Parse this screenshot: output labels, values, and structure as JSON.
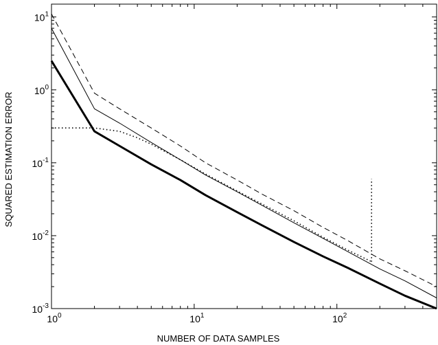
{
  "chart_data": {
    "type": "line",
    "title": "",
    "xlabel": "NUMBER OF DATA SAMPLES",
    "ylabel": "SQUARED ESTIMATION ERROR",
    "xscale": "log",
    "yscale": "log",
    "xlim": [
      1,
      500
    ],
    "ylim": [
      0.001,
      15
    ],
    "grid": false,
    "legend": "none",
    "x_ticks": [
      {
        "base": "10",
        "exp": "0"
      },
      {
        "base": "10",
        "exp": "1"
      },
      {
        "base": "10",
        "exp": "2"
      }
    ],
    "y_ticks": [
      {
        "base": "10",
        "exp": "-3"
      },
      {
        "base": "10",
        "exp": "-2"
      },
      {
        "base": "10",
        "exp": "-1"
      },
      {
        "base": "10",
        "exp": "0"
      },
      {
        "base": "10",
        "exp": "1"
      }
    ],
    "series": [
      {
        "style": "dashed",
        "x": [
          1,
          2,
          3,
          5,
          8,
          12,
          20,
          30,
          50,
          80,
          120,
          200,
          300,
          500
        ],
        "y": [
          11,
          0.9,
          0.55,
          0.3,
          0.17,
          0.1,
          0.058,
          0.037,
          0.022,
          0.013,
          0.0085,
          0.0048,
          0.0033,
          0.002
        ]
      },
      {
        "style": "thin-solid",
        "x": [
          1,
          2,
          3,
          5,
          8,
          12,
          20,
          30,
          50,
          80,
          120,
          200,
          300,
          500
        ],
        "y": [
          7,
          0.55,
          0.35,
          0.19,
          0.11,
          0.068,
          0.04,
          0.026,
          0.015,
          0.0092,
          0.006,
          0.0035,
          0.0024,
          0.0014
        ]
      },
      {
        "style": "dotted",
        "x": [
          1,
          2,
          3,
          4,
          5,
          8,
          12,
          20,
          30,
          50,
          80,
          120,
          175
        ],
        "y": [
          0.3,
          0.3,
          0.27,
          0.22,
          0.18,
          0.11,
          0.07,
          0.041,
          0.027,
          0.016,
          0.0095,
          0.0063,
          0.0044
        ]
      },
      {
        "style": "thick-solid",
        "x": [
          1,
          2,
          3,
          5,
          8,
          12,
          20,
          30,
          50,
          80,
          120,
          200,
          300,
          500
        ],
        "y": [
          2.5,
          0.27,
          0.17,
          0.095,
          0.058,
          0.036,
          0.021,
          0.0138,
          0.0082,
          0.0052,
          0.0036,
          0.0022,
          0.0015,
          0.001
        ]
      }
    ],
    "annotations": [
      {
        "type": "vertical-dotted-line",
        "x": 175,
        "y_range": [
          0.0044,
          0.06
        ]
      }
    ]
  }
}
